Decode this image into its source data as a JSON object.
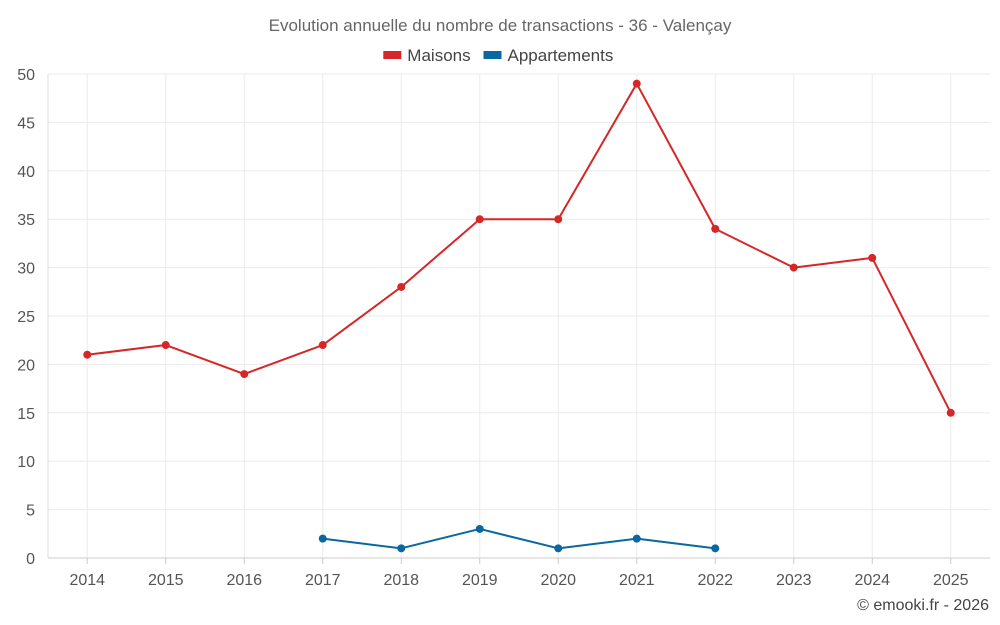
{
  "chart_data": {
    "type": "line",
    "title": "Evolution annuelle du nombre de transactions - 36 - Valençay",
    "xlabel": "",
    "ylabel": "",
    "categories": [
      "2014",
      "2015",
      "2016",
      "2017",
      "2018",
      "2019",
      "2020",
      "2021",
      "2022",
      "2023",
      "2024",
      "2025"
    ],
    "y_ticks": [
      "0",
      "5",
      "10",
      "15",
      "20",
      "25",
      "30",
      "35",
      "40",
      "45",
      "50"
    ],
    "ylim": [
      0,
      50
    ],
    "grid": true,
    "legend_position": "top-center",
    "series": [
      {
        "name": "Maisons",
        "color": "#d62728",
        "values": [
          21,
          22,
          19,
          22,
          28,
          35,
          35,
          49,
          34,
          30,
          31,
          15
        ]
      },
      {
        "name": "Appartements",
        "color": "#0b67a0",
        "values": [
          null,
          null,
          null,
          2,
          1,
          3,
          1,
          2,
          1,
          null,
          null,
          null
        ]
      }
    ]
  },
  "footer": {
    "credit": "© emooki.fr - 2026"
  }
}
